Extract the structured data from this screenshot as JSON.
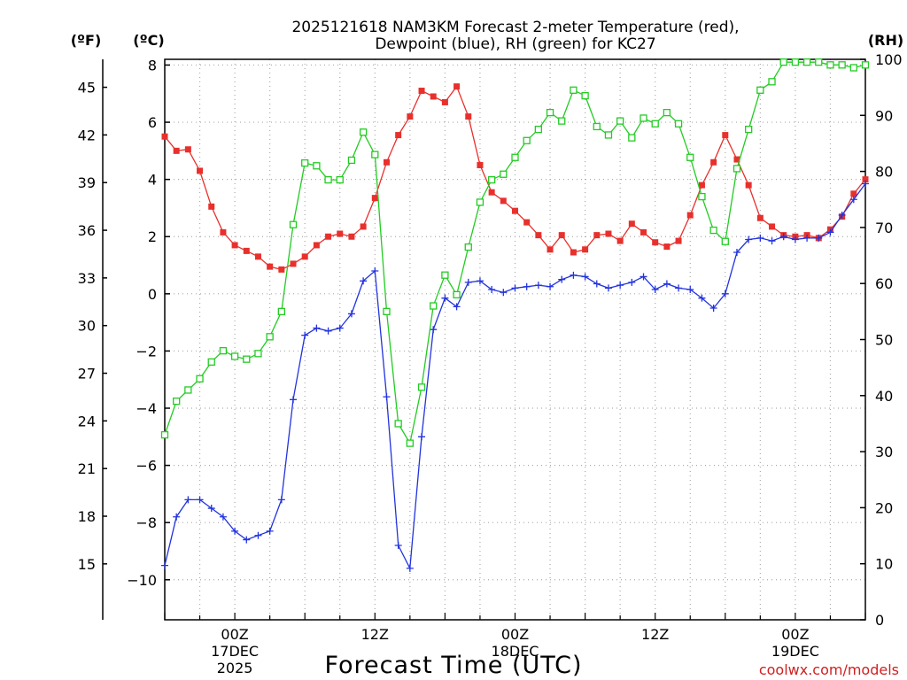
{
  "chart_data": {
    "type": "line",
    "title_line1": "2025121618 NAM3KM Forecast 2-meter Temperature (red),",
    "title_line2": "Dewpoint (blue), RH (green) for KC27",
    "xlabel": "Forecast Time (UTC)",
    "credit": "coolwx.com/models",
    "x_hours_start": 0,
    "x_step_hours": 1,
    "xlim_hours": [
      0,
      60
    ],
    "x_ticks": [
      {
        "hour": 6,
        "line1": "00Z",
        "line2": "17DEC",
        "line3": "2025"
      },
      {
        "hour": 18,
        "line1": "12Z",
        "line2": "",
        "line3": ""
      },
      {
        "hour": 30,
        "line1": "00Z",
        "line2": "18DEC",
        "line3": ""
      },
      {
        "hour": 42,
        "line1": "12Z",
        "line2": "",
        "line3": ""
      },
      {
        "hour": 54,
        "line1": "00Z",
        "line2": "19DEC",
        "line3": ""
      }
    ],
    "axis_c": {
      "label": "(ºC)",
      "ylim": [
        -11.4,
        8.2
      ],
      "ticks": [
        -10,
        -8,
        -6,
        -4,
        -2,
        0,
        2,
        4,
        6,
        8
      ]
    },
    "axis_f": {
      "label": "(ºF)",
      "ticks": [
        15,
        18,
        21,
        24,
        27,
        30,
        33,
        36,
        39,
        42,
        45
      ]
    },
    "axis_rh": {
      "label": "(RH)",
      "ylim": [
        0,
        100
      ],
      "ticks": [
        0,
        10,
        20,
        30,
        40,
        50,
        60,
        70,
        80,
        90,
        100
      ]
    },
    "series": [
      {
        "name": "Temperature (ºC)",
        "color": "#e8302c",
        "marker": "filled-square",
        "axis": "C",
        "values": [
          5.5,
          5.0,
          5.05,
          4.3,
          3.05,
          2.15,
          1.7,
          1.5,
          1.3,
          0.95,
          0.85,
          1.05,
          1.3,
          1.7,
          2.0,
          2.1,
          2.0,
          2.35,
          3.35,
          4.6,
          5.55,
          6.2,
          7.1,
          6.9,
          6.7,
          7.25,
          6.2,
          4.5,
          3.55,
          3.25,
          2.9,
          2.5,
          2.05,
          1.55,
          2.05,
          1.45,
          1.55,
          2.05,
          2.1,
          1.85,
          2.45,
          2.15,
          1.8,
          1.65,
          1.85,
          2.75,
          3.8,
          4.6,
          5.55,
          4.7,
          3.8,
          2.65,
          2.35,
          2.05,
          2.0,
          2.05,
          1.95,
          2.25,
          2.7,
          3.5,
          4.0
        ]
      },
      {
        "name": "Dewpoint (ºC)",
        "color": "#2233dd",
        "marker": "plus",
        "axis": "C",
        "values": [
          -9.5,
          -7.8,
          -7.2,
          -7.2,
          -7.5,
          -7.8,
          -8.3,
          -8.6,
          -8.45,
          -8.3,
          -7.2,
          -3.7,
          -1.45,
          -1.2,
          -1.3,
          -1.2,
          -0.7,
          0.45,
          0.8,
          -3.6,
          -8.8,
          -9.6,
          -5.0,
          -1.25,
          -0.15,
          -0.45,
          0.4,
          0.45,
          0.15,
          0.05,
          0.2,
          0.25,
          0.3,
          0.25,
          0.5,
          0.65,
          0.6,
          0.35,
          0.2,
          0.3,
          0.4,
          0.6,
          0.15,
          0.35,
          0.2,
          0.15,
          -0.15,
          -0.5,
          0.0,
          1.45,
          1.9,
          1.95,
          1.85,
          2.0,
          1.9,
          1.95,
          1.95,
          2.15,
          2.75,
          3.3,
          3.85
        ]
      },
      {
        "name": "RH (%)",
        "color": "#22cc22",
        "marker": "open-square",
        "axis": "RH",
        "values": [
          33,
          39,
          41,
          43,
          46,
          48,
          47,
          46.5,
          47.5,
          50.5,
          55,
          70.5,
          81.5,
          81,
          78.5,
          78.5,
          82,
          87,
          83,
          55,
          35,
          31.5,
          41.5,
          56,
          61.5,
          58,
          66.5,
          74.5,
          78.5,
          79.5,
          82.5,
          85.5,
          87.5,
          90.5,
          89,
          94.5,
          93.5,
          88,
          86.5,
          89,
          86,
          89.5,
          88.5,
          90.5,
          88.5,
          82.5,
          75.5,
          69.5,
          67.5,
          80.5,
          87.5,
          94.5,
          96,
          99.5,
          99.5,
          99.5,
          99.5,
          99,
          99,
          98.5,
          99
        ]
      }
    ]
  }
}
